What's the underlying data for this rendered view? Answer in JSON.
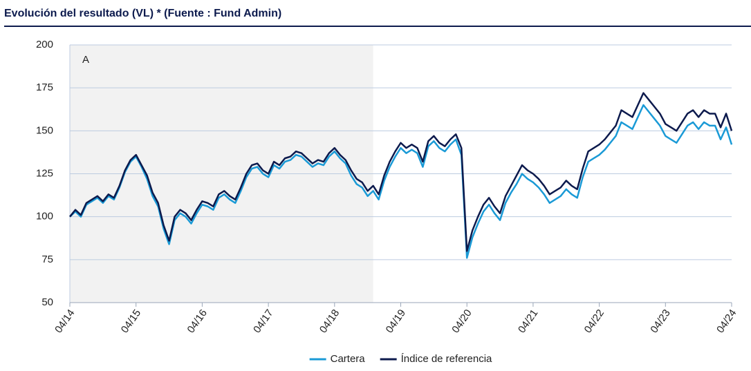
{
  "chart_data": {
    "type": "line",
    "title": "Evolución del resultado (VL) * (Fuente : Fund Admin)",
    "x": [
      "04/14",
      "05/14",
      "06/14",
      "07/14",
      "08/14",
      "09/14",
      "10/14",
      "11/14",
      "12/14",
      "01/15",
      "02/15",
      "03/15",
      "04/15",
      "05/15",
      "06/15",
      "07/15",
      "08/15",
      "09/15",
      "10/15",
      "11/15",
      "12/15",
      "01/16",
      "02/16",
      "03/16",
      "04/16",
      "05/16",
      "06/16",
      "07/16",
      "08/16",
      "09/16",
      "10/16",
      "11/16",
      "12/16",
      "01/17",
      "02/17",
      "03/17",
      "04/17",
      "05/17",
      "06/17",
      "07/17",
      "08/17",
      "09/17",
      "10/17",
      "11/17",
      "12/17",
      "01/18",
      "02/18",
      "03/18",
      "04/18",
      "05/18",
      "06/18",
      "07/18",
      "08/18",
      "09/18",
      "10/18",
      "11/18",
      "12/18",
      "01/19",
      "02/19",
      "03/19",
      "04/19",
      "05/19",
      "06/19",
      "07/19",
      "08/19",
      "09/19",
      "10/19",
      "11/19",
      "12/19",
      "01/20",
      "02/20",
      "03/20",
      "04/20",
      "05/20",
      "06/20",
      "07/20",
      "08/20",
      "09/20",
      "10/20",
      "11/20",
      "12/20",
      "01/21",
      "02/21",
      "03/21",
      "04/21",
      "05/21",
      "06/21",
      "07/21",
      "08/21",
      "09/21",
      "10/21",
      "11/21",
      "12/21",
      "01/22",
      "02/22",
      "03/22",
      "04/22",
      "05/22",
      "06/22",
      "07/22",
      "08/22",
      "09/22",
      "10/22",
      "11/22",
      "12/22",
      "01/23",
      "02/23",
      "03/23",
      "04/23",
      "05/23",
      "06/23",
      "07/23",
      "08/23",
      "09/23",
      "10/23",
      "11/23",
      "12/23",
      "01/24",
      "02/24",
      "03/24",
      "04/24"
    ],
    "series": [
      {
        "name": "Cartera",
        "color": "#1a9ad6",
        "values": [
          100,
          103,
          100,
          107,
          109,
          111,
          108,
          112,
          110,
          117,
          126,
          132,
          135,
          129,
          122,
          112,
          106,
          93,
          84,
          98,
          102,
          100,
          96,
          102,
          107,
          106,
          104,
          111,
          113,
          110,
          108,
          115,
          123,
          128,
          129,
          125,
          123,
          130,
          128,
          132,
          133,
          136,
          135,
          132,
          129,
          131,
          130,
          135,
          138,
          134,
          131,
          124,
          119,
          117,
          112,
          115,
          110,
          121,
          129,
          135,
          140,
          137,
          139,
          137,
          129,
          141,
          144,
          140,
          138,
          142,
          145,
          136,
          76,
          88,
          96,
          103,
          107,
          102,
          98,
          108,
          114,
          119,
          125,
          122,
          120,
          117,
          113,
          108,
          110,
          112,
          116,
          113,
          111,
          123,
          132,
          134,
          136,
          139,
          143,
          147,
          155,
          153,
          151,
          158,
          165,
          161,
          157,
          153,
          147,
          145,
          143,
          148,
          153,
          155,
          151,
          155,
          153,
          153,
          145,
          152,
          142
        ]
      },
      {
        "name": "Índice de referencia",
        "color": "#0c1a4d",
        "values": [
          100,
          104,
          101,
          108,
          110,
          112,
          109,
          113,
          111,
          118,
          127,
          133,
          136,
          130,
          124,
          114,
          108,
          95,
          86,
          100,
          104,
          102,
          98,
          104,
          109,
          108,
          106,
          113,
          115,
          112,
          110,
          117,
          125,
          130,
          131,
          127,
          125,
          132,
          130,
          134,
          135,
          138,
          137,
          134,
          131,
          133,
          132,
          137,
          140,
          136,
          133,
          127,
          122,
          120,
          115,
          118,
          113,
          124,
          132,
          138,
          143,
          140,
          142,
          140,
          132,
          144,
          147,
          143,
          141,
          145,
          148,
          140,
          80,
          92,
          100,
          107,
          111,
          106,
          102,
          112,
          118,
          124,
          130,
          127,
          125,
          122,
          118,
          113,
          115,
          117,
          121,
          118,
          116,
          128,
          138,
          140,
          142,
          145,
          149,
          153,
          162,
          160,
          158,
          165,
          172,
          168,
          164,
          160,
          154,
          152,
          150,
          155,
          160,
          162,
          158,
          162,
          160,
          160,
          152,
          160,
          150
        ]
      }
    ],
    "xticks": [
      "04/14",
      "04/15",
      "04/16",
      "04/17",
      "04/18",
      "04/19",
      "04/20",
      "04/21",
      "04/22",
      "04/23",
      "04/24"
    ],
    "ylim": [
      50,
      200
    ],
    "yticks": [
      50,
      75,
      100,
      125,
      150,
      175,
      200
    ],
    "grid": true,
    "shaded_period": {
      "label": "A",
      "from": "04/14",
      "to": "11/18"
    },
    "legend": "bottom"
  }
}
